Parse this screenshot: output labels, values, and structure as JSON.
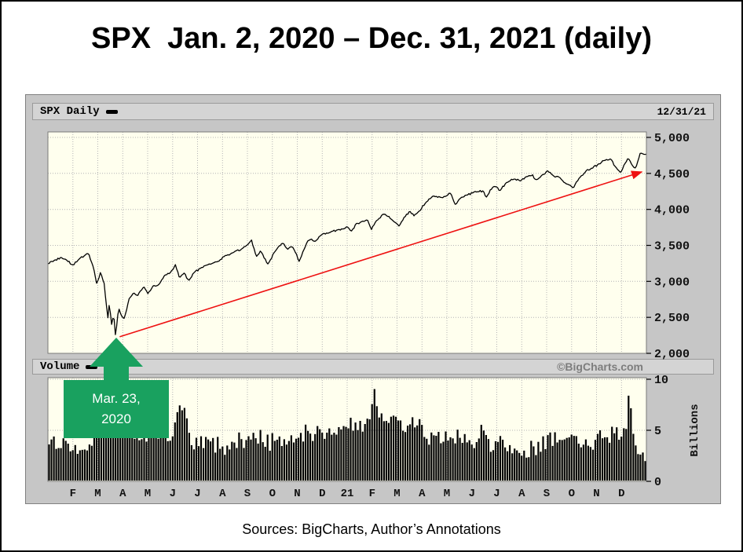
{
  "title": "SPX  Jan. 2, 2020 – Dec. 31, 2021 (daily)",
  "panel": {
    "symbol_label": "SPX Daily",
    "last_date": "12/31/21",
    "volume_label": "Volume",
    "watermark": "©BigCharts.com"
  },
  "footer": {
    "source_note": "Sources: BigCharts, Author’s Annotations"
  },
  "chart_data": {
    "type": "line",
    "symbol": "SPX",
    "frequency": "daily",
    "date_range": "Jan. 2, 2020 – Dec. 31, 2021",
    "title": "SPX  Jan. 2, 2020 – Dec. 31, 2021 (daily)",
    "price_axis": {
      "side": "right",
      "range": [
        2000,
        5000
      ],
      "tick_values": [
        5000,
        4500,
        4000,
        3500,
        3000,
        2500,
        2000
      ],
      "tick_labels": [
        "5,000",
        "4,500",
        "4,000",
        "3,500",
        "3,000",
        "2,500",
        "2,000"
      ]
    },
    "volume_axis": {
      "side": "right",
      "range": [
        0,
        10
      ],
      "tick_values": [
        10,
        5,
        0
      ],
      "tick_labels": [
        "10",
        "5",
        "0"
      ],
      "unit_label": "Billions"
    },
    "x_axis": {
      "months_span": 24,
      "labels": [
        "F",
        "M",
        "A",
        "M",
        "J",
        "J",
        "A",
        "S",
        "O",
        "N",
        "D",
        "21",
        "F",
        "M",
        "A",
        "M",
        "J",
        "J",
        "A",
        "S",
        "O",
        "N",
        "D"
      ]
    },
    "grid": {
      "style": "dotted",
      "color": "#b4b4b4"
    },
    "key_points": {
      "covid_low": {
        "date": "Mar. 23, 2020",
        "value": 2237
      },
      "period_end": {
        "date": "12/31/21",
        "value": 4766
      }
    },
    "price_series": {
      "name": "SPX close",
      "anchors_t_value": [
        [
          0.0,
          3245
        ],
        [
          0.01,
          3290
        ],
        [
          0.022,
          3330
        ],
        [
          0.03,
          3300
        ],
        [
          0.042,
          3225
        ],
        [
          0.052,
          3310
        ],
        [
          0.062,
          3360
        ],
        [
          0.068,
          3386
        ],
        [
          0.075,
          3220
        ],
        [
          0.082,
          2954
        ],
        [
          0.088,
          3130
        ],
        [
          0.094,
          2972
        ],
        [
          0.1,
          2480
        ],
        [
          0.103,
          2711
        ],
        [
          0.106,
          2386
        ],
        [
          0.11,
          2530
        ],
        [
          0.113,
          2237
        ],
        [
          0.118,
          2630
        ],
        [
          0.122,
          2540
        ],
        [
          0.128,
          2480
        ],
        [
          0.135,
          2750
        ],
        [
          0.143,
          2846
        ],
        [
          0.15,
          2800
        ],
        [
          0.16,
          2930
        ],
        [
          0.167,
          2831
        ],
        [
          0.175,
          2930
        ],
        [
          0.185,
          2955
        ],
        [
          0.195,
          3080
        ],
        [
          0.205,
          3125
        ],
        [
          0.213,
          3232
        ],
        [
          0.22,
          3041
        ],
        [
          0.228,
          3117
        ],
        [
          0.235,
          3009
        ],
        [
          0.245,
          3130
        ],
        [
          0.255,
          3180
        ],
        [
          0.265,
          3224
        ],
        [
          0.275,
          3251
        ],
        [
          0.285,
          3276
        ],
        [
          0.295,
          3350
        ],
        [
          0.31,
          3400
        ],
        [
          0.325,
          3455
        ],
        [
          0.333,
          3500
        ],
        [
          0.34,
          3580
        ],
        [
          0.348,
          3340
        ],
        [
          0.355,
          3420
        ],
        [
          0.362,
          3320
        ],
        [
          0.368,
          3237
        ],
        [
          0.378,
          3400
        ],
        [
          0.385,
          3477
        ],
        [
          0.393,
          3534
        ],
        [
          0.4,
          3440
        ],
        [
          0.408,
          3480
        ],
        [
          0.415,
          3390
        ],
        [
          0.42,
          3270
        ],
        [
          0.428,
          3443
        ],
        [
          0.433,
          3550
        ],
        [
          0.44,
          3585
        ],
        [
          0.448,
          3558
        ],
        [
          0.455,
          3630
        ],
        [
          0.465,
          3670
        ],
        [
          0.475,
          3690
        ],
        [
          0.485,
          3720
        ],
        [
          0.495,
          3732
        ],
        [
          0.5,
          3756
        ],
        [
          0.508,
          3700
        ],
        [
          0.515,
          3800
        ],
        [
          0.525,
          3830
        ],
        [
          0.535,
          3850
        ],
        [
          0.54,
          3714
        ],
        [
          0.548,
          3830
        ],
        [
          0.56,
          3935
        ],
        [
          0.57,
          3900
        ],
        [
          0.578,
          3830
        ],
        [
          0.587,
          3768
        ],
        [
          0.595,
          3890
        ],
        [
          0.605,
          3974
        ],
        [
          0.612,
          3910
        ],
        [
          0.62,
          3972
        ],
        [
          0.63,
          4080
        ],
        [
          0.64,
          4160
        ],
        [
          0.645,
          4185
        ],
        [
          0.655,
          4170
        ],
        [
          0.665,
          4180
        ],
        [
          0.673,
          4233
        ],
        [
          0.68,
          4063
        ],
        [
          0.69,
          4160
        ],
        [
          0.7,
          4200
        ],
        [
          0.71,
          4230
        ],
        [
          0.72,
          4247
        ],
        [
          0.727,
          4255
        ],
        [
          0.732,
          4166
        ],
        [
          0.74,
          4280
        ],
        [
          0.748,
          4320
        ],
        [
          0.755,
          4258
        ],
        [
          0.765,
          4360
        ],
        [
          0.772,
          4400
        ],
        [
          0.78,
          4422
        ],
        [
          0.79,
          4395
        ],
        [
          0.8,
          4460
        ],
        [
          0.81,
          4480
        ],
        [
          0.815,
          4406
        ],
        [
          0.825,
          4470
        ],
        [
          0.835,
          4537
        ],
        [
          0.845,
          4460
        ],
        [
          0.855,
          4443
        ],
        [
          0.865,
          4357
        ],
        [
          0.878,
          4300
        ],
        [
          0.888,
          4440
        ],
        [
          0.9,
          4544
        ],
        [
          0.91,
          4574
        ],
        [
          0.92,
          4630
        ],
        [
          0.93,
          4680
        ],
        [
          0.94,
          4705
        ],
        [
          0.948,
          4594
        ],
        [
          0.957,
          4513
        ],
        [
          0.965,
          4650
        ],
        [
          0.97,
          4712
        ],
        [
          0.976,
          4620
        ],
        [
          0.982,
          4568
        ],
        [
          0.99,
          4791
        ],
        [
          1.0,
          4766
        ]
      ]
    },
    "volume_series": {
      "name": "Volume (billions of shares)",
      "anchors_t_value": [
        [
          0.0,
          3.8
        ],
        [
          0.02,
          3.5
        ],
        [
          0.04,
          3.6
        ],
        [
          0.06,
          3.4
        ],
        [
          0.08,
          4.6
        ],
        [
          0.095,
          7.0
        ],
        [
          0.105,
          7.8
        ],
        [
          0.113,
          7.2
        ],
        [
          0.125,
          6.0
        ],
        [
          0.14,
          5.2
        ],
        [
          0.16,
          4.8
        ],
        [
          0.18,
          4.4
        ],
        [
          0.2,
          4.2
        ],
        [
          0.213,
          5.5
        ],
        [
          0.222,
          7.8
        ],
        [
          0.235,
          4.6
        ],
        [
          0.25,
          3.9
        ],
        [
          0.27,
          3.6
        ],
        [
          0.29,
          3.5
        ],
        [
          0.31,
          3.8
        ],
        [
          0.335,
          4.2
        ],
        [
          0.345,
          4.7
        ],
        [
          0.36,
          4.0
        ],
        [
          0.38,
          3.8
        ],
        [
          0.4,
          3.9
        ],
        [
          0.42,
          4.1
        ],
        [
          0.433,
          5.2
        ],
        [
          0.445,
          4.6
        ],
        [
          0.46,
          4.8
        ],
        [
          0.475,
          4.5
        ],
        [
          0.49,
          5.3
        ],
        [
          0.5,
          5.8
        ],
        [
          0.51,
          5.0
        ],
        [
          0.52,
          5.2
        ],
        [
          0.535,
          6.2
        ],
        [
          0.545,
          9.2
        ],
        [
          0.555,
          6.0
        ],
        [
          0.57,
          5.8
        ],
        [
          0.585,
          5.6
        ],
        [
          0.6,
          5.2
        ],
        [
          0.615,
          5.7
        ],
        [
          0.63,
          4.8
        ],
        [
          0.645,
          4.2
        ],
        [
          0.66,
          4.0
        ],
        [
          0.675,
          4.5
        ],
        [
          0.69,
          4.3
        ],
        [
          0.705,
          3.9
        ],
        [
          0.72,
          3.7
        ],
        [
          0.727,
          5.8
        ],
        [
          0.735,
          4.0
        ],
        [
          0.75,
          3.5
        ],
        [
          0.765,
          3.4
        ],
        [
          0.78,
          3.3
        ],
        [
          0.795,
          3.2
        ],
        [
          0.81,
          3.4
        ],
        [
          0.825,
          3.5
        ],
        [
          0.838,
          4.4
        ],
        [
          0.85,
          3.8
        ],
        [
          0.865,
          4.0
        ],
        [
          0.878,
          4.3
        ],
        [
          0.89,
          3.8
        ],
        [
          0.9,
          3.7
        ],
        [
          0.915,
          3.9
        ],
        [
          0.93,
          4.1
        ],
        [
          0.94,
          4.4
        ],
        [
          0.95,
          4.9
        ],
        [
          0.957,
          5.2
        ],
        [
          0.965,
          4.6
        ],
        [
          0.972,
          8.4
        ],
        [
          0.98,
          4.2
        ],
        [
          0.99,
          3.0
        ],
        [
          1.0,
          2.6
        ]
      ]
    },
    "annotations": {
      "low_callout": {
        "line1": "Mar. 23,",
        "line2": "2020",
        "color": "#19a15f",
        "text_color": "#ffffff"
      },
      "trend_arrow": {
        "color": "#ee1111",
        "from": {
          "t": 0.12,
          "value": 2230
        },
        "to": {
          "t": 0.992,
          "value": 4520
        }
      }
    },
    "colors": {
      "plot_bg": "#ffffee",
      "panel_bg": "#c6c6c6",
      "line": "#000000",
      "volume_bars": "#000000"
    }
  }
}
